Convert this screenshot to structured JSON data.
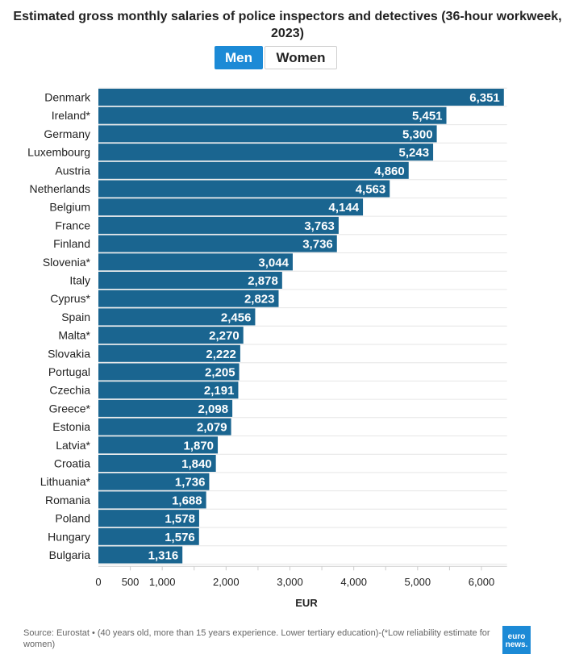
{
  "toggle": {
    "men_label": "Men",
    "women_label": "Women",
    "selected": "Men"
  },
  "source_text": "Source: Eurostat • (40 years old, more than 15 years experience. Lower tertiary education)-(*Low reliability estimate for women)",
  "logo_text": "euro news.",
  "colors": {
    "bar": "#1a6590",
    "grid": "#e6e6e6",
    "accent": "#1c8ad6"
  },
  "chart_data": {
    "type": "bar",
    "orientation": "horizontal",
    "title": "Estimated gross monthly salaries of police inspectors and detectives (36-hour workweek, 2023)",
    "xlabel": "EUR",
    "ylabel": "",
    "xlim": [
      0,
      6400
    ],
    "xticks": [
      0,
      500,
      1000,
      2000,
      3000,
      4000,
      5000,
      6000
    ],
    "xtick_labels": [
      "0",
      "500",
      "1,000",
      "2,000",
      "3,000",
      "4,000",
      "5,000",
      "6,000"
    ],
    "grid": true,
    "categories": [
      "Denmark",
      "Ireland*",
      "Germany",
      "Luxembourg",
      "Austria",
      "Netherlands",
      "Belgium",
      "France",
      "Finland",
      "Slovenia*",
      "Italy",
      "Cyprus*",
      "Spain",
      "Malta*",
      "Slovakia",
      "Portugal",
      "Czechia",
      "Greece*",
      "Estonia",
      "Latvia*",
      "Croatia",
      "Lithuania*",
      "Romania",
      "Poland",
      "Hungary",
      "Bulgaria"
    ],
    "values": [
      6351,
      5451,
      5300,
      5243,
      4860,
      4563,
      4144,
      3763,
      3736,
      3044,
      2878,
      2823,
      2456,
      2270,
      2222,
      2205,
      2191,
      2098,
      2079,
      1870,
      1840,
      1736,
      1688,
      1578,
      1576,
      1316
    ],
    "value_labels": [
      "6,351",
      "5,451",
      "5,300",
      "5,243",
      "4,860",
      "4,563",
      "4,144",
      "3,763",
      "3,736",
      "3,044",
      "2,878",
      "2,823",
      "2,456",
      "2,270",
      "2,222",
      "2,205",
      "2,191",
      "2,098",
      "2,079",
      "1,870",
      "1,840",
      "1,736",
      "1,688",
      "1,578",
      "1,576",
      "1,316"
    ],
    "series_name": "Men"
  }
}
